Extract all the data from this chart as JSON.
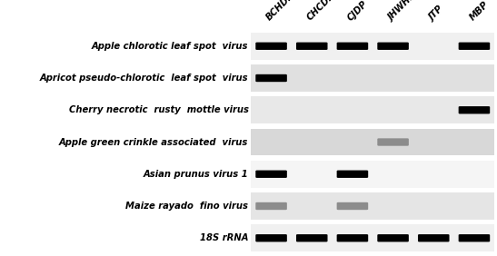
{
  "columns": [
    "BCHDP",
    "CHCDP",
    "CJDP",
    "JHWHDP",
    "JTP",
    "MBP"
  ],
  "rows": [
    "Apple chlorotic leaf spot  virus",
    "Apricot pseudo-chlorotic  leaf spot  virus",
    "Cherry necrotic  rusty  mottle virus",
    "Apple green crinkle associated  virus",
    "Asian prunus virus 1",
    "Maize rayado  fino virus",
    "18S rRNA"
  ],
  "bands": [
    [
      1,
      1,
      1,
      1,
      0,
      1
    ],
    [
      1,
      0,
      0,
      0,
      0,
      0
    ],
    [
      0,
      0,
      0,
      0,
      0,
      1
    ],
    [
      0,
      0,
      0,
      0.45,
      0,
      0
    ],
    [
      1,
      0,
      1,
      0,
      0,
      0
    ],
    [
      0.45,
      0,
      0.45,
      0,
      0,
      0
    ],
    [
      1,
      1,
      1,
      1,
      1,
      1
    ]
  ],
  "background_colors": [
    "#f0f0f0",
    "#e0e0e0",
    "#e8e8e8",
    "#d8d8d8",
    "#f5f5f5",
    "#e5e5e5",
    "#f0f0f0"
  ],
  "fig_width": 5.47,
  "fig_height": 2.82,
  "font_size_row": 7.2,
  "font_size_col": 7.2
}
